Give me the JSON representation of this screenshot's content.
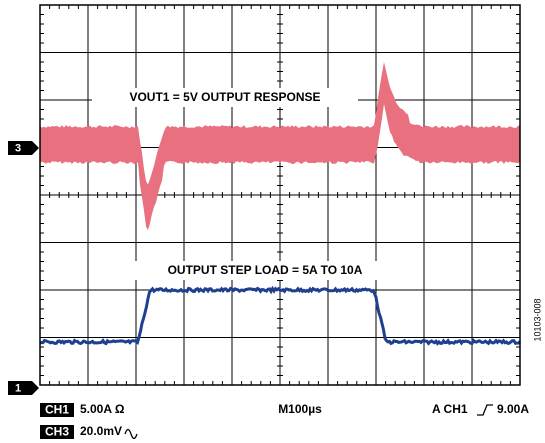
{
  "screen": {
    "trace3_label": "VOUT1 = 5V OUTPUT RESPONSE",
    "trace1_label": "OUTPUT STEP LOAD = 5A TO 10A",
    "marker3": "3",
    "marker1": "1",
    "ch1_badge": "CH1",
    "ch1_setting": "5.00A Ω",
    "timebase": "M100µs",
    "trigger_prefix": "A  CH1",
    "trigger_level": "9.00A",
    "ch3_badge": "CH3",
    "ch3_setting": "20.0mV",
    "figure_id": "10103-008"
  }
}
